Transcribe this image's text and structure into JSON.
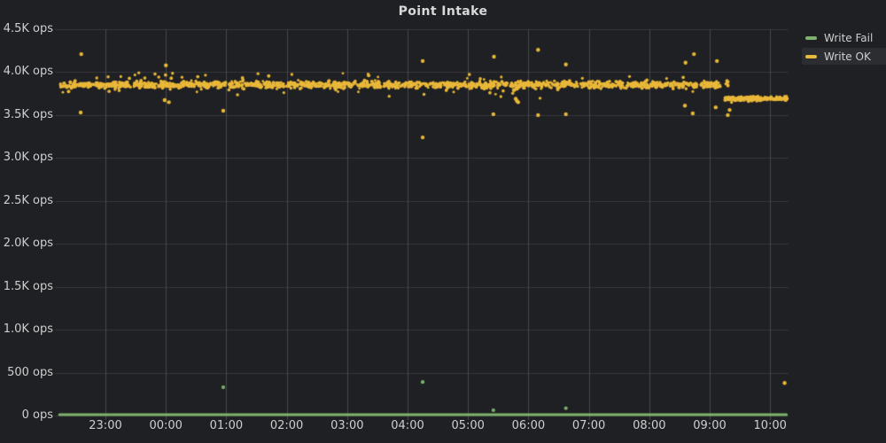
{
  "colors": {
    "background": "#1f2023",
    "grid_horizontal": "#36373c",
    "grid_vertical": "#46474c",
    "tick_mark": "#4a4b50",
    "text": "#cdced0",
    "title_text": "#d8d9da",
    "legend_highlight_bg": "#2c2d31"
  },
  "chart_data": {
    "type": "scatter",
    "title": "Point Intake",
    "grid": true,
    "legend_position": "top-right",
    "x_axis": {
      "unit": "time",
      "domain_hours_from_2300": [
        -0.78,
        11.3
      ],
      "ticks": [
        {
          "label": "23:00",
          "hour": 0
        },
        {
          "label": "00:00",
          "hour": 1
        },
        {
          "label": "01:00",
          "hour": 2
        },
        {
          "label": "02:00",
          "hour": 3
        },
        {
          "label": "03:00",
          "hour": 4
        },
        {
          "label": "04:00",
          "hour": 5
        },
        {
          "label": "05:00",
          "hour": 6
        },
        {
          "label": "06:00",
          "hour": 7
        },
        {
          "label": "07:00",
          "hour": 8
        },
        {
          "label": "08:00",
          "hour": 9
        },
        {
          "label": "09:00",
          "hour": 10
        },
        {
          "label": "10:00",
          "hour": 11
        }
      ]
    },
    "y_axis": {
      "unit": "ops",
      "min": 0,
      "max": 4500,
      "ticks": [
        {
          "label": "0 ops",
          "value": 0
        },
        {
          "label": "500 ops",
          "value": 500
        },
        {
          "label": "1.0K ops",
          "value": 1000
        },
        {
          "label": "1.5K ops",
          "value": 1500
        },
        {
          "label": "2.0K ops",
          "value": 2000
        },
        {
          "label": "2.5K ops",
          "value": 2500
        },
        {
          "label": "3.0K ops",
          "value": 3000
        },
        {
          "label": "3.5K ops",
          "value": 3500
        },
        {
          "label": "4.0K ops",
          "value": 4000
        },
        {
          "label": "4.5K ops",
          "value": 4500
        }
      ]
    },
    "series": [
      {
        "name": "Write Fail",
        "color": "#7eb26d",
        "style": "baseline-with-outliers",
        "baseline": {
          "t_start": -0.76,
          "t_end": 11.27,
          "value": 0
        },
        "points": [
          {
            "t": 1.95,
            "v": 330
          },
          {
            "t": 5.25,
            "v": 390
          },
          {
            "t": 6.42,
            "v": 62
          },
          {
            "t": 7.62,
            "v": 85
          }
        ]
      },
      {
        "name": "Write OK",
        "color": "#eab839",
        "style": "dense-scatter-band",
        "bands": [
          {
            "t_start": -0.75,
            "t_end": 10.31,
            "value": 3855,
            "jitter": 20,
            "bump_rate": 0.05,
            "bump_extra": 90,
            "points": 1500
          },
          {
            "t_start": 10.25,
            "t_end": 11.28,
            "value": 3690,
            "jitter": 12,
            "bump_rate": 0.02,
            "bump_extra": 30,
            "points": 210
          }
        ],
        "points": [
          {
            "t": -0.4,
            "v": 4210
          },
          {
            "t": -0.41,
            "v": 3530
          },
          {
            "t": 1.0,
            "v": 4080
          },
          {
            "t": 0.98,
            "v": 3675
          },
          {
            "t": 1.05,
            "v": 3650
          },
          {
            "t": 1.95,
            "v": 3550
          },
          {
            "t": 5.25,
            "v": 4130
          },
          {
            "t": 5.25,
            "v": 3240
          },
          {
            "t": 6.43,
            "v": 4180
          },
          {
            "t": 6.42,
            "v": 3510
          },
          {
            "t": 6.76,
            "v": 3790
          },
          {
            "t": 6.79,
            "v": 3690
          },
          {
            "t": 6.81,
            "v": 3665
          },
          {
            "t": 6.83,
            "v": 3650
          },
          {
            "t": 7.16,
            "v": 4260
          },
          {
            "t": 7.16,
            "v": 3500
          },
          {
            "t": 7.62,
            "v": 4090
          },
          {
            "t": 7.62,
            "v": 3510
          },
          {
            "t": 9.59,
            "v": 3610
          },
          {
            "t": 9.6,
            "v": 4110
          },
          {
            "t": 9.72,
            "v": 3520
          },
          {
            "t": 9.74,
            "v": 4210
          },
          {
            "t": 10.1,
            "v": 3590
          },
          {
            "t": 10.12,
            "v": 4130
          },
          {
            "t": 10.3,
            "v": 3500
          },
          {
            "t": 10.33,
            "v": 3560
          },
          {
            "t": 11.24,
            "v": 380
          }
        ]
      }
    ]
  },
  "legend": {
    "items": [
      {
        "label": "Write Fail",
        "highlighted": false
      },
      {
        "label": "Write OK",
        "highlighted": true
      }
    ]
  }
}
